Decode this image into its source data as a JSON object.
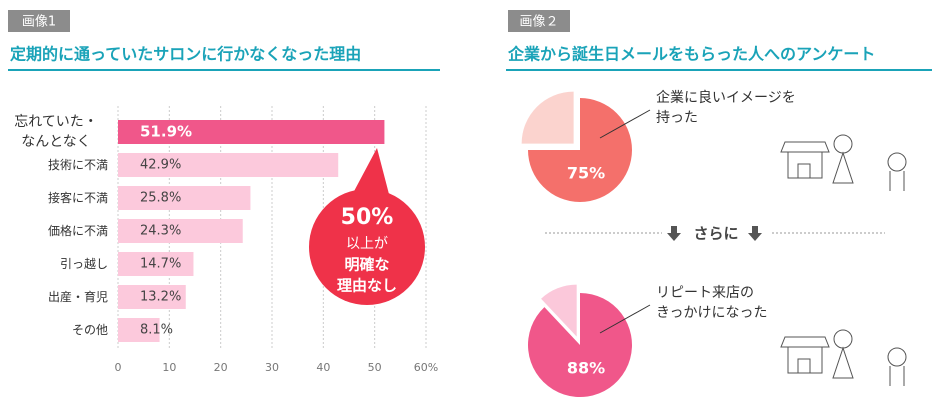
{
  "chart_data": [
    {
      "type": "bar",
      "label": "画像1",
      "title": "定期的に通っていたサロンに行かなくなった理由",
      "categories": [
        "忘れていた・なんとなく",
        "技術に不満",
        "接客に不満",
        "価格に不満",
        "引っ越し",
        "出産・育児",
        "その他"
      ],
      "values": [
        51.9,
        42.9,
        25.8,
        24.3,
        14.7,
        13.2,
        8.1
      ],
      "value_labels": [
        "51.9%",
        "42.9%",
        "25.8%",
        "24.3%",
        "14.7%",
        "13.2%",
        "8.1%"
      ],
      "colors": [
        "#f0578a",
        "#fcc9dc",
        "#fcc9dc",
        "#fcc9dc",
        "#fcc9dc",
        "#fcc9dc",
        "#fcc9dc"
      ],
      "highlight": 0,
      "xlim": [
        0,
        60
      ],
      "xticks": [
        0,
        10,
        20,
        30,
        40,
        50,
        {
          "value": 60,
          "label": "60%"
        }
      ],
      "grid": true,
      "callout": [
        "50%",
        "以上が",
        "明確な",
        "理由なし"
      ],
      "callout_color": "#ef3249"
    },
    {
      "type": "pie",
      "label": "画像２",
      "title": "企業から誕生日メールをもらった人へのアンケート",
      "values": [
        75,
        25
      ],
      "value_labels": [
        "75%",
        null
      ],
      "colors": [
        "#f4706b",
        "#fbd3ce"
      ],
      "annotation": [
        "企業に良いイメージを",
        "持った"
      ]
    },
    {
      "type": "pie",
      "separator": "さらに",
      "values": [
        88,
        12
      ],
      "value_labels": [
        "88%",
        null
      ],
      "colors": [
        "#f0578a",
        "#fbc8da"
      ],
      "annotation": [
        "リピート来店の",
        "きっかけになった"
      ]
    }
  ]
}
